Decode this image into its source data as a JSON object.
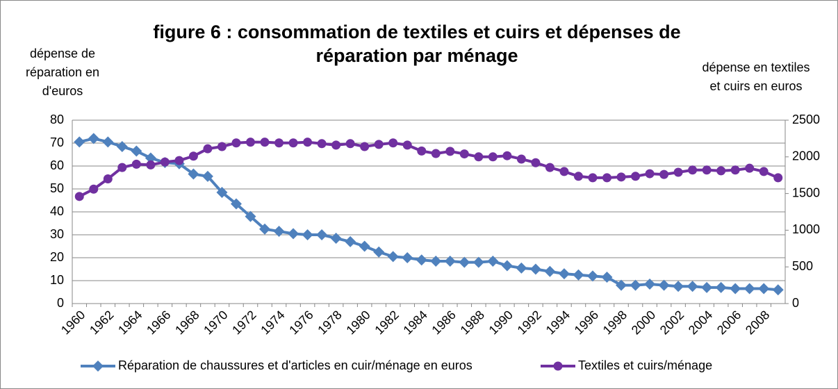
{
  "chart_data": {
    "type": "line",
    "title": [
      "figure 6 : consommation de textiles et cuirs et dépenses de",
      "réparation par ménage"
    ],
    "ylabel": [
      "dépense de",
      "réparation en",
      "d'euros"
    ],
    "y2label": [
      "dépense en textiles",
      "et cuirs en euros"
    ],
    "categories": [
      "1960",
      null,
      "1962",
      null,
      "1964",
      null,
      "1966",
      null,
      "1968",
      null,
      "1970",
      null,
      "1972",
      null,
      "1974",
      null,
      "1976",
      null,
      "1978",
      null,
      "1980",
      null,
      "1982",
      null,
      "1984",
      null,
      "1986",
      null,
      "1988",
      null,
      "1990",
      null,
      "1992",
      null,
      "1994",
      null,
      "1996",
      null,
      "1998",
      null,
      "2000",
      null,
      "2002",
      null,
      "2004",
      null,
      "2006",
      null,
      "2008",
      null
    ],
    "ylim": [
      0,
      80
    ],
    "yticks": [
      0,
      10,
      20,
      30,
      40,
      50,
      60,
      70,
      80
    ],
    "y2lim": [
      0,
      2500
    ],
    "y2ticks": [
      0,
      500,
      1000,
      1500,
      2000,
      2500
    ],
    "grid": true,
    "legend": "bottom",
    "series": [
      {
        "name": "Réparation de chaussures et d'articles en cuir/ménage en euros",
        "color": "#4f81bd",
        "marker": "diamond",
        "values": [
          70.5,
          72,
          70.5,
          68.5,
          66.5,
          63.5,
          61.5,
          61,
          56.5,
          55.5,
          48.5,
          43.5,
          38,
          32.5,
          31.5,
          30.5,
          30,
          30,
          28.5,
          27,
          25,
          22.5,
          20.5,
          20,
          19,
          18.5,
          18.5,
          18,
          18,
          18.5,
          16.5,
          15.5,
          15,
          14,
          13,
          12.5,
          12,
          11.5,
          8,
          8,
          8.5,
          8,
          7.5,
          7.5,
          7,
          7,
          6.5,
          6.5,
          6.5,
          6
        ]
      },
      {
        "name": "Textiles et cuirs/ménage",
        "color": "#7030a0",
        "marker": "circle",
        "axis": "y2",
        "values": [
          1460,
          1560,
          1700,
          1855,
          1900,
          1890,
          1930,
          1950,
          2010,
          2110,
          2140,
          2190,
          2200,
          2200,
          2190,
          2190,
          2200,
          2180,
          2160,
          2180,
          2140,
          2170,
          2190,
          2160,
          2080,
          2045,
          2075,
          2040,
          2000,
          2000,
          2015,
          1970,
          1920,
          1855,
          1800,
          1735,
          1715,
          1715,
          1725,
          1735,
          1770,
          1760,
          1790,
          1820,
          1820,
          1810,
          1820,
          1845,
          1800,
          1715
        ]
      }
    ]
  }
}
